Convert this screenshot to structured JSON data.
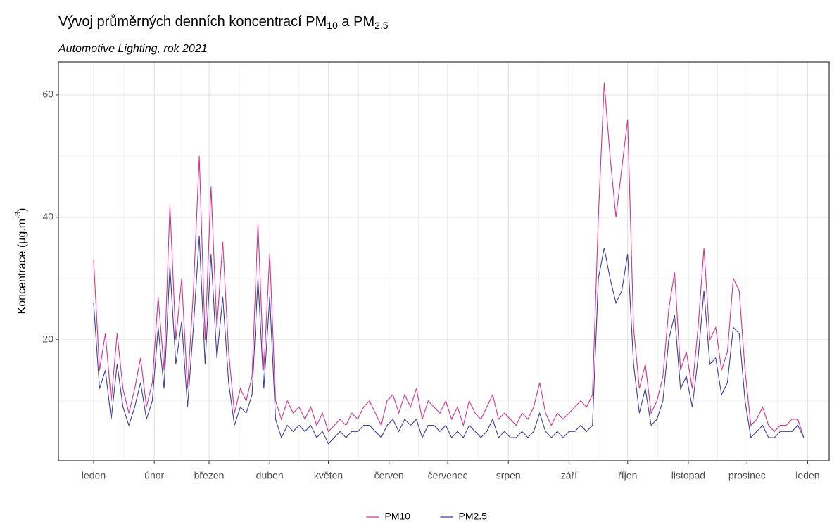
{
  "chart_data": {
    "type": "line",
    "title": [
      "Vývoj průměrných denních koncentrací PM",
      "10",
      " a PM",
      "2.5"
    ],
    "subtitle": "Automotive Lighting, rok 2021",
    "ylabel": [
      "Koncentrace (µg.m",
      "-3",
      ")"
    ],
    "x": [
      0,
      3,
      6,
      9,
      12,
      15,
      18,
      21,
      24,
      27,
      30,
      33,
      36,
      39,
      42,
      45,
      48,
      51,
      54,
      57,
      60,
      63,
      66,
      69,
      72,
      75,
      78,
      81,
      84,
      87,
      90,
      93,
      96,
      99,
      102,
      105,
      108,
      111,
      114,
      117,
      120,
      123,
      126,
      129,
      132,
      135,
      138,
      141,
      144,
      147,
      150,
      153,
      156,
      159,
      162,
      165,
      168,
      171,
      174,
      177,
      180,
      183,
      186,
      189,
      192,
      195,
      198,
      201,
      204,
      207,
      210,
      213,
      216,
      219,
      222,
      225,
      228,
      231,
      234,
      237,
      240,
      243,
      246,
      249,
      252,
      255,
      258,
      261,
      264,
      267,
      270,
      273,
      276,
      279,
      282,
      285,
      288,
      291,
      294,
      297,
      300,
      303,
      306,
      309,
      312,
      315,
      318,
      321,
      324,
      327,
      330,
      333,
      336,
      339,
      342,
      345,
      348,
      351,
      354,
      357,
      360,
      363
    ],
    "series": [
      {
        "name": "PM10",
        "color": "#d6338a",
        "values": [
          33,
          15,
          21,
          10,
          21,
          12,
          8,
          12,
          17,
          9,
          13,
          27,
          15,
          42,
          20,
          30,
          12,
          28,
          50,
          20,
          45,
          22,
          36,
          18,
          8,
          12,
          10,
          14,
          39,
          15,
          34,
          10,
          7,
          10,
          8,
          9,
          7,
          9,
          6,
          8,
          5,
          6,
          7,
          6,
          8,
          7,
          9,
          10,
          8,
          6,
          10,
          11,
          8,
          11,
          9,
          12,
          7,
          10,
          9,
          8,
          10,
          7,
          9,
          6,
          10,
          8,
          7,
          9,
          11,
          7,
          8,
          7,
          6,
          8,
          7,
          9,
          13,
          8,
          6,
          8,
          7,
          8,
          9,
          10,
          9,
          11,
          40,
          62,
          50,
          40,
          48,
          56,
          22,
          12,
          16,
          8,
          10,
          14,
          25,
          31,
          15,
          18,
          12,
          22,
          35,
          20,
          22,
          15,
          18,
          30,
          28,
          15,
          6,
          7,
          9,
          6,
          5,
          6,
          6,
          7,
          7,
          4
        ]
      },
      {
        "name": "PM2.5",
        "color": "#3b3fa0",
        "values": [
          26,
          12,
          15,
          7,
          16,
          9,
          6,
          9,
          13,
          7,
          10,
          22,
          12,
          32,
          16,
          23,
          9,
          22,
          37,
          16,
          34,
          17,
          27,
          13,
          6,
          9,
          8,
          11,
          30,
          12,
          27,
          7,
          4,
          6,
          5,
          6,
          5,
          6,
          4,
          5,
          3,
          4,
          5,
          4,
          5,
          5,
          6,
          6,
          5,
          4,
          6,
          7,
          5,
          7,
          6,
          7,
          4,
          6,
          6,
          5,
          6,
          4,
          5,
          4,
          6,
          5,
          4,
          5,
          7,
          4,
          5,
          4,
          4,
          5,
          4,
          5,
          8,
          5,
          4,
          5,
          4,
          5,
          5,
          6,
          5,
          6,
          30,
          35,
          30,
          26,
          28,
          34,
          16,
          8,
          12,
          6,
          7,
          10,
          20,
          24,
          12,
          14,
          9,
          17,
          28,
          16,
          17,
          11,
          13,
          22,
          21,
          10,
          4,
          5,
          6,
          4,
          4,
          5,
          5,
          5,
          6,
          4
        ]
      }
    ],
    "xlim": [
      -18,
      376
    ],
    "xticks": [
      {
        "value": 0,
        "label": "leden"
      },
      {
        "value": 31,
        "label": "únor"
      },
      {
        "value": 59,
        "label": "březen"
      },
      {
        "value": 90,
        "label": "duben"
      },
      {
        "value": 120,
        "label": "květen"
      },
      {
        "value": 151,
        "label": "červen"
      },
      {
        "value": 181,
        "label": "červenec"
      },
      {
        "value": 212,
        "label": "srpen"
      },
      {
        "value": 243,
        "label": "září"
      },
      {
        "value": 273,
        "label": "říjen"
      },
      {
        "value": 304,
        "label": "listopad"
      },
      {
        "value": 334,
        "label": "prosinec"
      },
      {
        "value": 365,
        "label": "leden"
      }
    ],
    "ylim": [
      0.2,
      65.4
    ],
    "yticks": [
      20,
      40,
      60
    ],
    "yminor": [
      10,
      30,
      50
    ],
    "grid": true,
    "legend": "bottom"
  }
}
